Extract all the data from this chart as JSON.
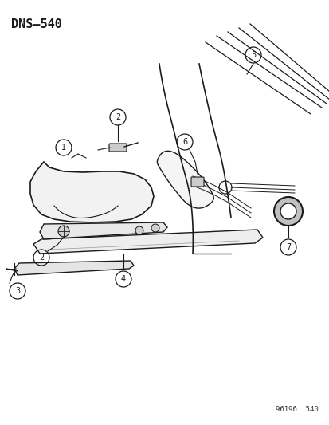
{
  "title": "DNS–540",
  "watermark": "96196  540",
  "bg_color": "#ffffff",
  "line_color": "#1a1a1a",
  "title_fontsize": 11,
  "watermark_fontsize": 6.5
}
